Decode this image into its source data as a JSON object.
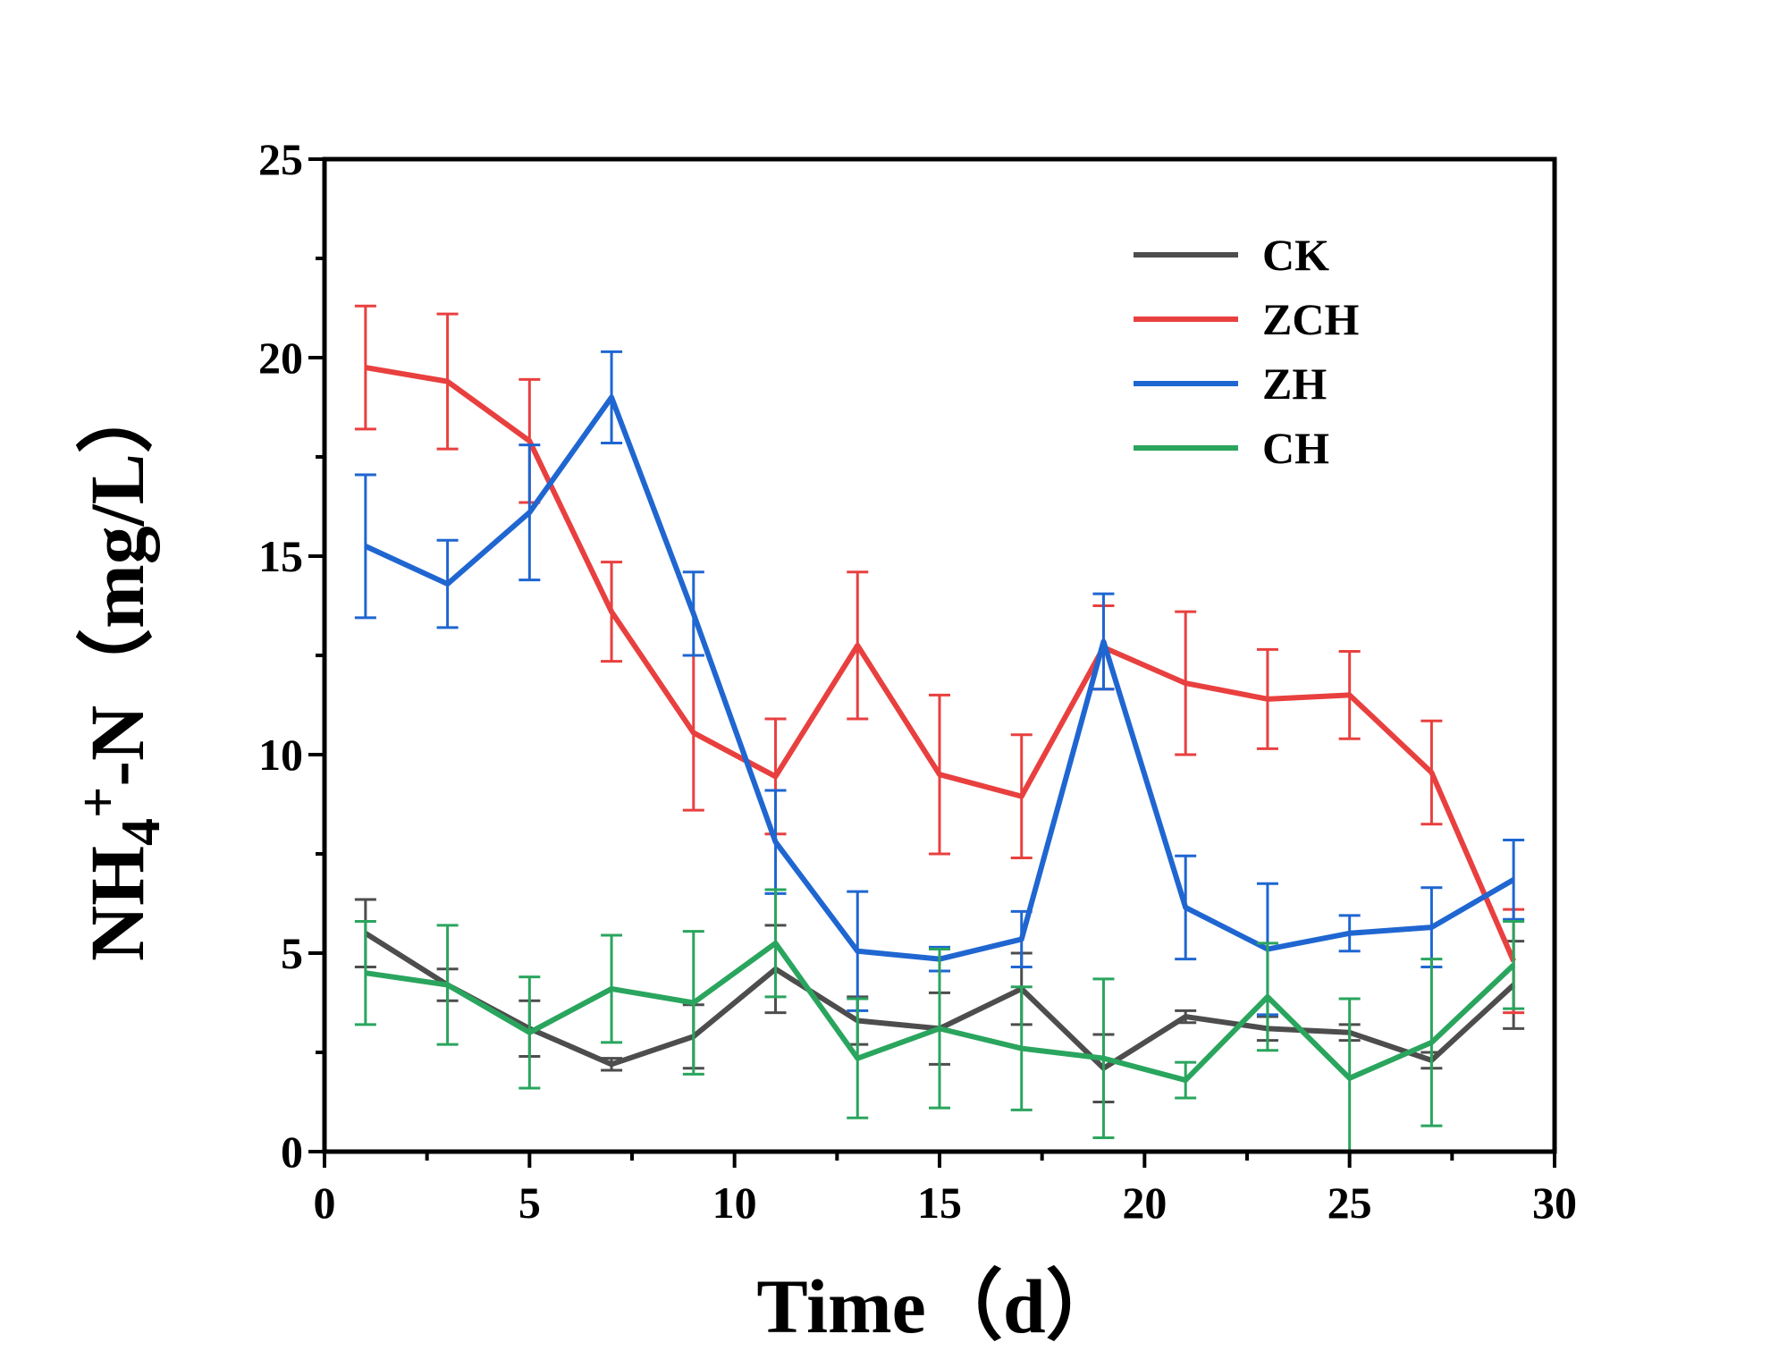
{
  "chart_data": {
    "type": "line",
    "title": "",
    "xlabel": "Time（d）",
    "ylabel_main": "NH",
    "ylabel_sub": "4",
    "ylabel_sup": "+",
    "ylabel_rest": "-N（mg/L）",
    "xlim": [
      0,
      30
    ],
    "ylim": [
      0,
      25
    ],
    "xticks": [
      0,
      5,
      10,
      15,
      20,
      25,
      30
    ],
    "yticks": [
      0,
      5,
      10,
      15,
      20,
      25
    ],
    "grid": false,
    "legend_position": "top-right",
    "x": [
      1,
      3,
      5,
      7,
      9,
      11,
      13,
      15,
      17,
      19,
      21,
      23,
      25,
      27,
      29
    ],
    "series": [
      {
        "name": "CK",
        "color": "#4d4d4d",
        "values": [
          5.5,
          4.2,
          3.1,
          2.2,
          2.9,
          4.6,
          3.3,
          3.1,
          4.1,
          2.1,
          3.4,
          3.1,
          3.0,
          2.3,
          4.2
        ],
        "errors": [
          0.85,
          0.4,
          0.7,
          0.15,
          0.8,
          1.1,
          0.6,
          0.9,
          0.9,
          0.85,
          0.15,
          0.3,
          0.2,
          0.2,
          1.1
        ]
      },
      {
        "name": "ZCH",
        "color": "#e8403f",
        "values": [
          19.75,
          19.4,
          17.9,
          13.6,
          10.55,
          9.45,
          12.75,
          9.5,
          8.95,
          12.7,
          11.8,
          11.4,
          11.5,
          9.55,
          4.8
        ],
        "errors": [
          1.55,
          1.7,
          1.55,
          1.25,
          1.95,
          1.45,
          1.85,
          2.0,
          1.55,
          1.05,
          1.8,
          1.25,
          1.1,
          1.3,
          1.3
        ]
      },
      {
        "name": "ZH",
        "color": "#1f66d1",
        "values": [
          15.25,
          14.3,
          16.1,
          19.0,
          13.55,
          7.8,
          5.05,
          4.85,
          5.35,
          12.85,
          6.15,
          5.1,
          5.5,
          5.65,
          6.85
        ],
        "errors": [
          1.8,
          1.1,
          1.7,
          1.15,
          1.05,
          1.3,
          1.5,
          0.3,
          0.7,
          1.2,
          1.3,
          1.65,
          0.45,
          1.0,
          1.0
        ]
      },
      {
        "name": "CH",
        "color": "#2aa55e",
        "values": [
          4.5,
          4.2,
          3.0,
          4.1,
          3.75,
          5.25,
          2.35,
          3.1,
          2.6,
          2.35,
          1.8,
          3.9,
          1.85,
          2.75,
          4.7
        ],
        "errors": [
          1.3,
          1.5,
          1.4,
          1.35,
          1.8,
          1.35,
          1.5,
          2.0,
          1.55,
          2.0,
          0.45,
          1.35,
          2.0,
          2.1,
          1.1
        ]
      }
    ]
  }
}
